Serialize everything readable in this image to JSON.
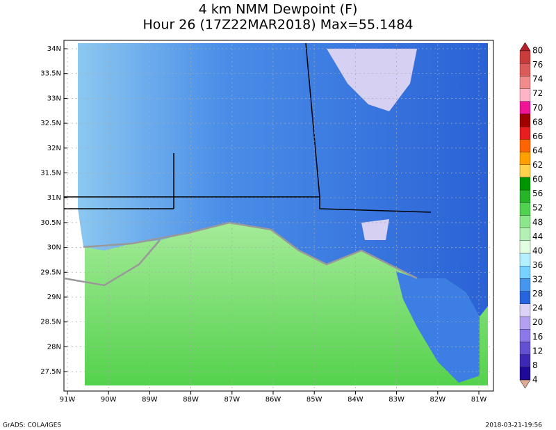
{
  "title": [
    "4 km NMM Dewpoint (F)",
    "Hour 26 (17Z22MAR2018) Max=55.1484"
  ],
  "lat_labels": [
    "34N",
    "33.5N",
    "33N",
    "32.5N",
    "32N",
    "31.5N",
    "31N",
    "30.5N",
    "30N",
    "29.5N",
    "29N",
    "28.5N",
    "28N",
    "27.5N"
  ],
  "lon_labels": [
    "91W",
    "90W",
    "89W",
    "88W",
    "87W",
    "86W",
    "85W",
    "84W",
    "83W",
    "82W",
    "81W"
  ],
  "colorbar": {
    "labels": [
      "80",
      "76",
      "74",
      "72",
      "70",
      "68",
      "66",
      "64",
      "62",
      "60",
      "56",
      "52",
      "48",
      "44",
      "40",
      "36",
      "32",
      "28",
      "24",
      "20",
      "16",
      "12",
      "8",
      "4"
    ],
    "colors": [
      "#b4202a",
      "#c83c3c",
      "#dc5a5a",
      "#f08c8c",
      "#ffb4c8",
      "#f01496",
      "#a00000",
      "#e61e1e",
      "#ff6400",
      "#ffa000",
      "#ffd24b",
      "#009600",
      "#28b428",
      "#50d250",
      "#8ce68c",
      "#b4f0b4",
      "#e1ffe1",
      "#b4f0ff",
      "#78d2ff",
      "#4696f0",
      "#2864dc",
      "#dcd2f5",
      "#b4a0f0",
      "#8c78e6",
      "#6450d2",
      "#3c28b4",
      "#1e0a96",
      "#dcaa96"
    ]
  },
  "footer": {
    "left": "GrADS: COLA/IGES",
    "right": "2018-03-21-19:56"
  }
}
